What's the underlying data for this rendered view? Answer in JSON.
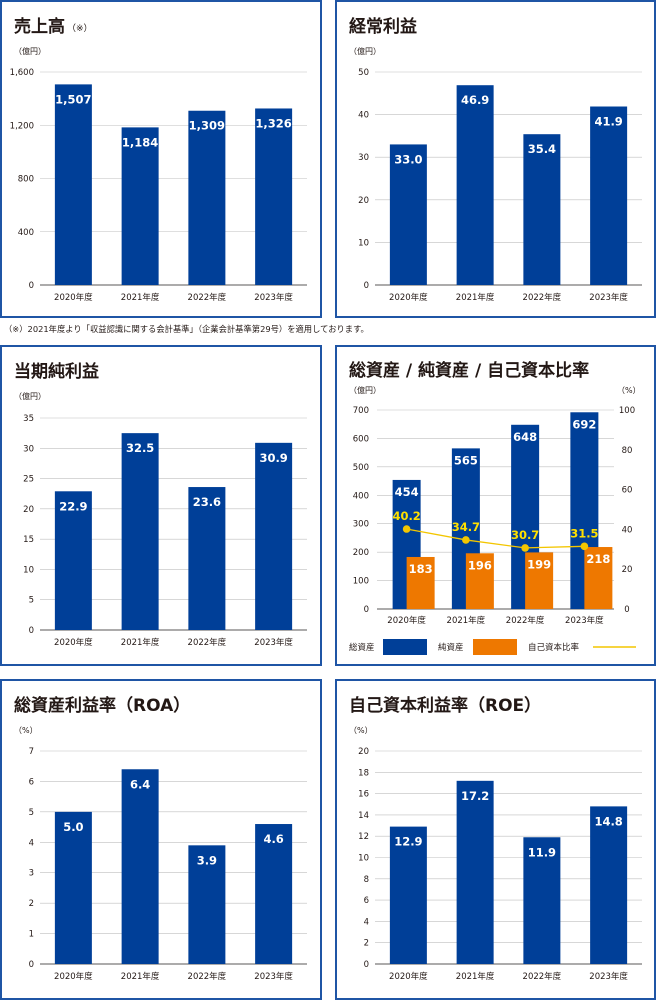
{
  "colors": {
    "navy": "#003f98",
    "orange": "#ee7800",
    "yellow": "#f3c600",
    "frame": "#1f55a5",
    "grid": "#bfbfbf"
  },
  "note": "（※）2021年度より「収益認識に関する会計基準」（企業会計基準第29号）を適用しております。",
  "chart_data": [
    {
      "id": "sales",
      "type": "bar",
      "title": "売上高",
      "title_suffix": "（※）",
      "unit": "（億円）",
      "categories": [
        "2020年度",
        "2021年度",
        "2022年度",
        "2023年度"
      ],
      "values": [
        1507,
        1184,
        1309,
        1326
      ],
      "labels": [
        "1,507",
        "1,184",
        "1,309",
        "1,326"
      ],
      "yticks": [
        0,
        400,
        800,
        1200,
        1600
      ],
      "ytick_labels": [
        "0",
        "400",
        "800",
        "1,200",
        "1,600"
      ],
      "ylim": [
        0,
        1600
      ],
      "grid": true
    },
    {
      "id": "ordinary",
      "type": "bar",
      "title": "経常利益",
      "unit": "（億円）",
      "categories": [
        "2020年度",
        "2021年度",
        "2022年度",
        "2023年度"
      ],
      "values": [
        33.0,
        46.9,
        35.4,
        41.9
      ],
      "labels": [
        "33.0",
        "46.9",
        "35.4",
        "41.9"
      ],
      "yticks": [
        0,
        10,
        20,
        30,
        40,
        50
      ],
      "ytick_labels": [
        "0",
        "10",
        "20",
        "30",
        "40",
        "50"
      ],
      "ylim": [
        0,
        50
      ],
      "grid": true
    },
    {
      "id": "netincome",
      "type": "bar",
      "title": "当期純利益",
      "unit": "（億円）",
      "categories": [
        "2020年度",
        "2021年度",
        "2022年度",
        "2023年度"
      ],
      "values": [
        22.9,
        32.5,
        23.6,
        30.9
      ],
      "labels": [
        "22.9",
        "32.5",
        "23.6",
        "30.9"
      ],
      "yticks": [
        0,
        5,
        10,
        15,
        20,
        25,
        30,
        35
      ],
      "ytick_labels": [
        "0",
        "5",
        "10",
        "15",
        "20",
        "25",
        "30",
        "35"
      ],
      "ylim": [
        0,
        35
      ],
      "grid": true
    },
    {
      "id": "assets",
      "type": "bar",
      "title": "総資産 / 純資産 / 自己資本比率",
      "unit_left": "（億円）",
      "unit_right": "（%）",
      "categories": [
        "2020年度",
        "2021年度",
        "2022年度",
        "2023年度"
      ],
      "series": [
        {
          "name": "総資産",
          "values": [
            454,
            565,
            648,
            692
          ],
          "labels": [
            "454",
            "565",
            "648",
            "692"
          ]
        },
        {
          "name": "純資産",
          "values": [
            183,
            196,
            199,
            218
          ],
          "labels": [
            "183",
            "196",
            "199",
            "218"
          ]
        },
        {
          "name": "自己資本比率",
          "values": [
            40.2,
            34.7,
            30.7,
            31.5
          ],
          "labels": [
            "40.2",
            "34.7",
            "30.7",
            "31.5"
          ],
          "axis": "right",
          "type": "line"
        }
      ],
      "yticks": [
        0,
        100,
        200,
        300,
        400,
        500,
        600,
        700
      ],
      "ytick_labels": [
        "0",
        "100",
        "200",
        "300",
        "400",
        "500",
        "600",
        "700"
      ],
      "y2ticks": [
        0,
        20,
        40,
        60,
        80,
        100
      ],
      "y2tick_labels": [
        "0",
        "20",
        "40",
        "60",
        "80",
        "100"
      ],
      "ylim": [
        0,
        700
      ],
      "y2lim": [
        0,
        100
      ],
      "grid": true,
      "legend": "bottom"
    },
    {
      "id": "roa",
      "type": "bar",
      "title": "総資産利益率（ROA）",
      "unit": "（%）",
      "categories": [
        "2020年度",
        "2021年度",
        "2022年度",
        "2023年度"
      ],
      "values": [
        5.0,
        6.4,
        3.9,
        4.6
      ],
      "labels": [
        "5.0",
        "6.4",
        "3.9",
        "4.6"
      ],
      "yticks": [
        0,
        1,
        2,
        3,
        4,
        5,
        6,
        7
      ],
      "ytick_labels": [
        "0",
        "1",
        "2",
        "3",
        "4",
        "5",
        "6",
        "7"
      ],
      "ylim": [
        0,
        7
      ],
      "grid": true
    },
    {
      "id": "roe",
      "type": "bar",
      "title": "自己資本利益率（ROE）",
      "unit": "（%）",
      "categories": [
        "2020年度",
        "2021年度",
        "2022年度",
        "2023年度"
      ],
      "values": [
        12.9,
        17.2,
        11.9,
        14.8
      ],
      "labels": [
        "12.9",
        "17.2",
        "11.9",
        "14.8"
      ],
      "yticks": [
        0,
        2,
        4,
        6,
        8,
        10,
        12,
        14,
        16,
        18,
        20
      ],
      "ytick_labels": [
        "0",
        "2",
        "4",
        "6",
        "8",
        "10",
        "12",
        "14",
        "16",
        "18",
        "20"
      ],
      "ylim": [
        0,
        20
      ],
      "grid": true
    }
  ]
}
